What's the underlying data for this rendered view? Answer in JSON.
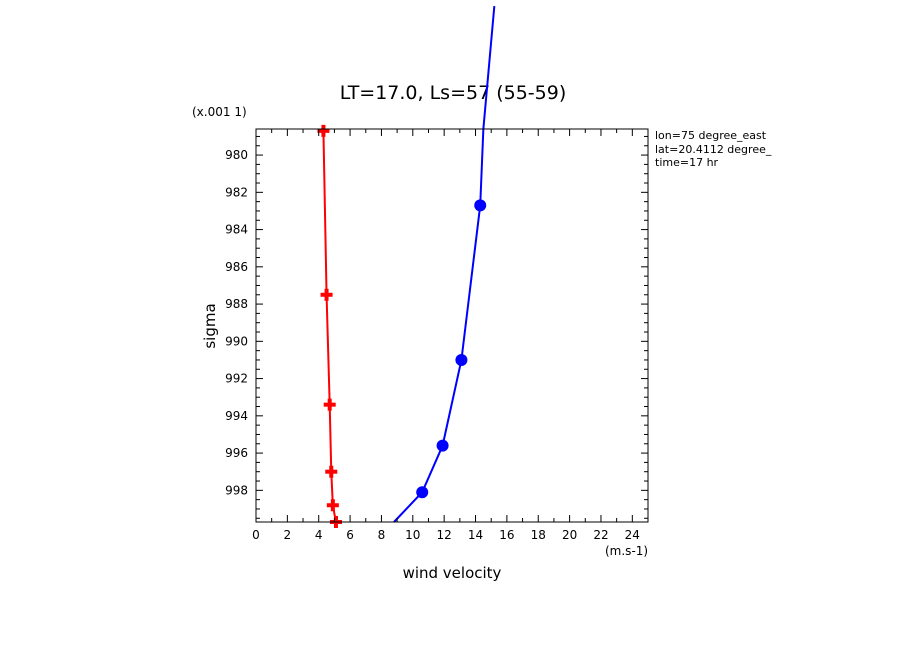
{
  "chart_data": {
    "type": "line",
    "title": "LT=17.0, Ls=57 (55-59)",
    "xlabel": "wind velocity",
    "ylabel": "sigma",
    "x_unit": "(m.s-1)",
    "y_multiplier": "(x.001 1)",
    "xlim": [
      0,
      25
    ],
    "ylim": [
      999.7,
      978.6
    ],
    "x_ticks": [
      0,
      2,
      4,
      6,
      8,
      10,
      12,
      14,
      16,
      18,
      20,
      22,
      24
    ],
    "y_ticks": [
      980,
      982,
      984,
      986,
      988,
      990,
      992,
      994,
      996,
      998
    ],
    "info": [
      "lon=75 degree_east",
      "lat=20.4112 degree_",
      "time=17 hr"
    ],
    "series": [
      {
        "color": "#ff0000",
        "marker": "cross",
        "points": [
          {
            "x": 4.3,
            "y": 978.7
          },
          {
            "x": 4.5,
            "y": 987.5
          },
          {
            "x": 4.7,
            "y": 993.4
          },
          {
            "x": 4.8,
            "y": 997.0
          },
          {
            "x": 4.9,
            "y": 998.8
          },
          {
            "x": 5.1,
            "y": 999.7
          }
        ]
      },
      {
        "color": "#0000ff",
        "marker": "circle",
        "points": [
          {
            "x": 8.8,
            "y": 999.7
          },
          {
            "x": 10.6,
            "y": 998.1
          },
          {
            "x": 11.9,
            "y": 995.6
          },
          {
            "x": 13.1,
            "y": 991.0
          },
          {
            "x": 14.3,
            "y": 982.7
          },
          {
            "x": 14.5,
            "y": 978.6
          },
          {
            "x": 15.2,
            "y": 972.0
          }
        ],
        "marker_points": [
          1,
          2,
          3,
          4
        ]
      }
    ]
  }
}
